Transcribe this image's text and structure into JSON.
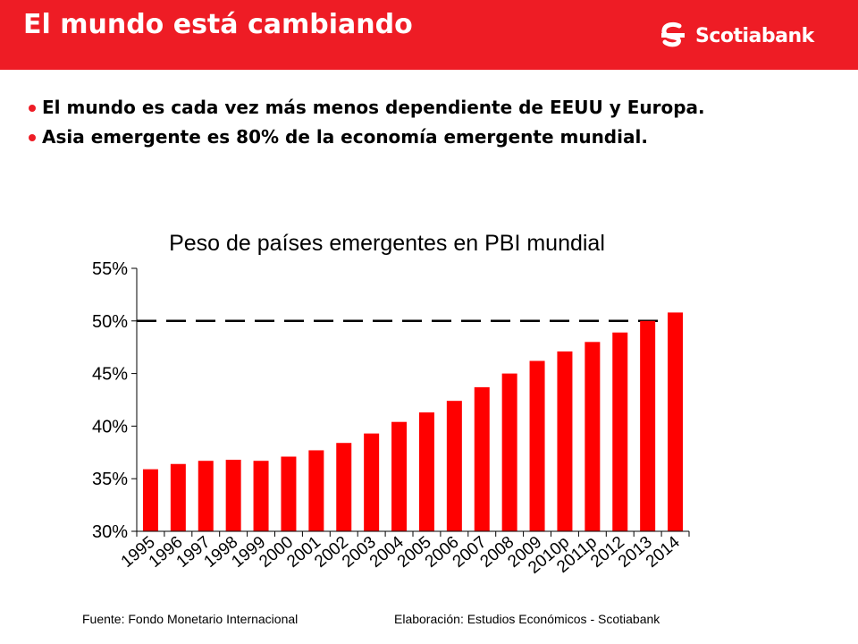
{
  "slide": {
    "title": "El mundo está cambiando",
    "logo_text": "Scotiabank",
    "bullets": [
      "El mundo es cada vez más menos dependiente de EEUU y Europa.",
      "Asia emergente es 80% de la economía emergente mundial."
    ],
    "source": "Fuente: Fondo Monetario Internacional",
    "credit": "Elaboración: Estudios Económicos - Scotiabank"
  },
  "colors": {
    "brand_red": "#ee1c25",
    "bar": "#ff0000",
    "text": "#000000"
  },
  "icons": {
    "logo": "scotiabank-s-icon",
    "bullet": "red-dot"
  },
  "chart_data": {
    "type": "bar",
    "title": "Peso de países emergentes en PBI mundial",
    "xlabel": "",
    "ylabel": "",
    "categories": [
      "1995",
      "1996",
      "1997",
      "1998",
      "1999",
      "2000",
      "2001",
      "2002",
      "2003",
      "2004",
      "2005",
      "2006",
      "2007",
      "2008",
      "2009",
      "2010p",
      "2011p",
      "2012",
      "2013",
      "2014"
    ],
    "values": [
      35.9,
      36.4,
      36.7,
      36.8,
      36.7,
      37.1,
      37.7,
      38.4,
      39.3,
      40.4,
      41.3,
      42.4,
      43.7,
      45.0,
      46.2,
      47.1,
      48.0,
      48.9,
      50.0,
      50.8
    ],
    "ylim": [
      30,
      55
    ],
    "yticks": [
      30,
      35,
      40,
      45,
      50,
      55
    ],
    "ytick_labels": [
      "30%",
      "35%",
      "40%",
      "45%",
      "50%",
      "55%"
    ],
    "reference_line": 50,
    "grid": false,
    "legend": "none"
  }
}
